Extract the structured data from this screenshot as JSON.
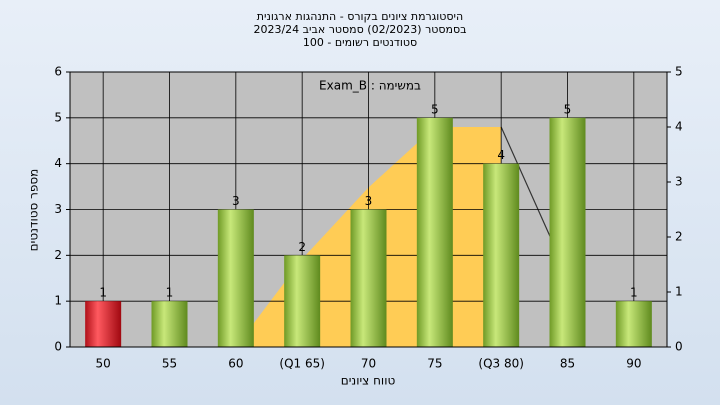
{
  "chart_data": {
    "type": "bar",
    "title": [
      "היסטוגרמת ציונים בקורס - התנהגות ארגונית",
      "בסמסטר (02/2023) סמסטר אביב 2023/24",
      "סטודנטים רשומים - 100"
    ],
    "annotation": "במשימה : Exam_B",
    "xlabel": "טווח ציונים",
    "ylabel": "מספר סטודנטים",
    "categories": [
      "50",
      "55",
      "60",
      "(Q1 65)",
      "70",
      "75",
      "(Q3 80)",
      "85",
      "90"
    ],
    "series": [
      {
        "type": "bar",
        "colors": [
          "#e0202a",
          "#8fbf3a",
          "#8fbf3a",
          "#8fbf3a",
          "#8fbf3a",
          "#8fbf3a",
          "#8fbf3a",
          "#8fbf3a",
          "#8fbf3a"
        ],
        "values": [
          1,
          1,
          3,
          2,
          3,
          5,
          4,
          5,
          1
        ]
      },
      {
        "type": "area",
        "axis": "y2",
        "color": "#ffcc55",
        "values": [
          null,
          null,
          0,
          1.6,
          2.9,
          4,
          4,
          null,
          null
        ]
      },
      {
        "type": "line",
        "axis": "y2",
        "color": "#333333",
        "values": [
          null,
          null,
          null,
          null,
          null,
          null,
          4,
          1.3,
          null
        ]
      }
    ],
    "ylim": [
      0,
      6
    ],
    "yticks": [
      0,
      1,
      2,
      3,
      4,
      5,
      6
    ],
    "y2lim": [
      0,
      5
    ],
    "y2ticks": [
      0,
      1,
      2,
      3,
      4,
      5
    ],
    "grid": true
  }
}
